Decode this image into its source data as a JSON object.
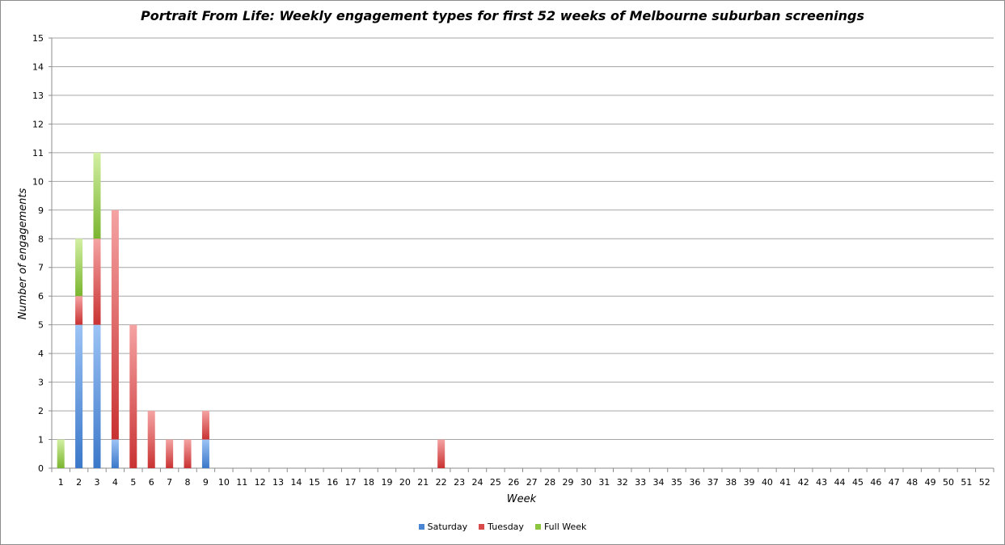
{
  "chart_data": {
    "type": "bar",
    "stacked": true,
    "title": "Portrait From Life: Weekly engagement types for first 52 weeks of Melbourne suburban screenings",
    "xlabel": "Week",
    "ylabel": "Number of engagements",
    "ylim": [
      0,
      15
    ],
    "yticks": [
      0,
      1,
      2,
      3,
      4,
      5,
      6,
      7,
      8,
      9,
      10,
      11,
      12,
      13,
      14,
      15
    ],
    "grid": true,
    "legend_position": "bottom",
    "categories": [
      "1",
      "2",
      "3",
      "4",
      "5",
      "6",
      "7",
      "8",
      "9",
      "10",
      "11",
      "12",
      "13",
      "14",
      "15",
      "16",
      "17",
      "18",
      "19",
      "20",
      "21",
      "22",
      "23",
      "24",
      "25",
      "26",
      "27",
      "28",
      "29",
      "30",
      "31",
      "32",
      "33",
      "34",
      "35",
      "36",
      "37",
      "38",
      "39",
      "40",
      "41",
      "42",
      "43",
      "44",
      "45",
      "46",
      "47",
      "48",
      "49",
      "50",
      "51",
      "52"
    ],
    "series": [
      {
        "name": "Saturday",
        "color": "#4a86d4",
        "values": [
          0,
          5,
          5,
          1,
          0,
          0,
          0,
          0,
          1,
          0,
          0,
          0,
          0,
          0,
          0,
          0,
          0,
          0,
          0,
          0,
          0,
          0,
          0,
          0,
          0,
          0,
          0,
          0,
          0,
          0,
          0,
          0,
          0,
          0,
          0,
          0,
          0,
          0,
          0,
          0,
          0,
          0,
          0,
          0,
          0,
          0,
          0,
          0,
          0,
          0,
          0,
          0
        ]
      },
      {
        "name": "Tuesday",
        "color": "#d94a4a",
        "values": [
          0,
          1,
          3,
          8,
          5,
          2,
          1,
          1,
          1,
          0,
          0,
          0,
          0,
          0,
          0,
          0,
          0,
          0,
          0,
          0,
          0,
          1,
          0,
          0,
          0,
          0,
          0,
          0,
          0,
          0,
          0,
          0,
          0,
          0,
          0,
          0,
          0,
          0,
          0,
          0,
          0,
          0,
          0,
          0,
          0,
          0,
          0,
          0,
          0,
          0,
          0,
          0
        ]
      },
      {
        "name": "Full Week",
        "color": "#8cc63f",
        "values": [
          1,
          2,
          3,
          0,
          0,
          0,
          0,
          0,
          0,
          0,
          0,
          0,
          0,
          0,
          0,
          0,
          0,
          0,
          0,
          0,
          0,
          0,
          0,
          0,
          0,
          0,
          0,
          0,
          0,
          0,
          0,
          0,
          0,
          0,
          0,
          0,
          0,
          0,
          0,
          0,
          0,
          0,
          0,
          0,
          0,
          0,
          0,
          0,
          0,
          0,
          0,
          0
        ]
      }
    ]
  }
}
